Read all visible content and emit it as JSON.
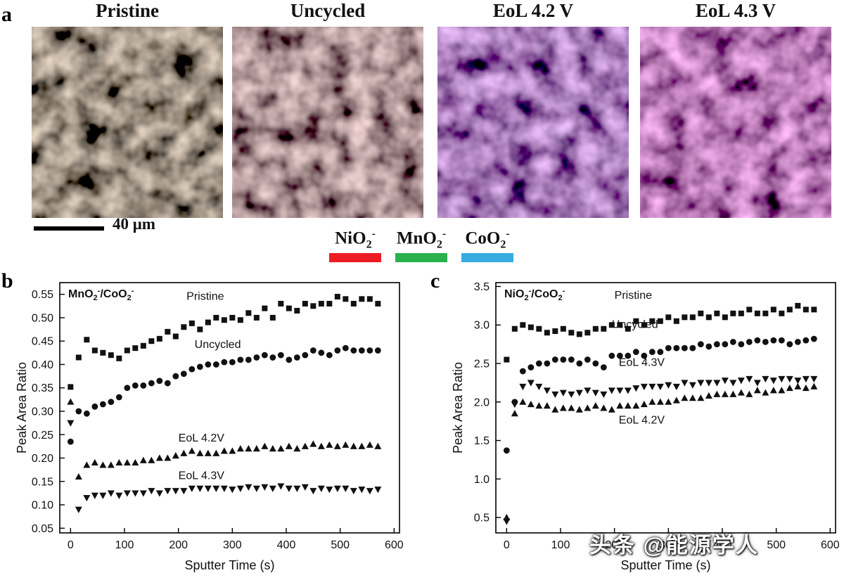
{
  "figure": {
    "panel_a": {
      "label": "a",
      "images": [
        {
          "title": "Pristine"
        },
        {
          "title": "Uncycled"
        },
        {
          "title": "EoL 4.2 V"
        },
        {
          "title": "EoL 4.3 V"
        }
      ],
      "scalebar_label": "40 μm",
      "legend": [
        {
          "base": "NiO",
          "sub": "2",
          "sup": "-",
          "color": "#ed1c24"
        },
        {
          "base": "MnO",
          "sub": "2",
          "sup": "-",
          "color": "#2ab04d"
        },
        {
          "base": "CoO",
          "sub": "2",
          "sup": "-",
          "color": "#38abe0"
        }
      ]
    },
    "panel_b_label": "b",
    "panel_c_label": "c",
    "watermark": "头条 @能源学人"
  },
  "chart_data": [
    {
      "id": "b",
      "type": "scatter",
      "title_segments": [
        {
          "t": "MnO"
        },
        {
          "t": "2",
          "sub": true
        },
        {
          "t": "-",
          "sup": true
        },
        {
          "t": "/CoO"
        },
        {
          "t": "2",
          "sub": true
        },
        {
          "t": "-",
          "sup": true
        }
      ],
      "xlabel": "Sputter Time (s)",
      "ylabel": "Peak Area Ratio",
      "xlim": [
        -20,
        610
      ],
      "ylim": [
        0.04,
        0.575
      ],
      "xticks": [
        0,
        100,
        200,
        300,
        400,
        500,
        600
      ],
      "xtick_labels": [
        "0",
        "100",
        "200",
        "300",
        "400",
        "500",
        "600"
      ],
      "yticks": [
        0.05,
        0.1,
        0.15,
        0.2,
        0.25,
        0.3,
        0.35,
        0.4,
        0.45,
        0.5,
        0.55
      ],
      "ytick_labels": [
        "0.05",
        "0.10",
        "0.15",
        "0.20",
        "0.25",
        "0.30",
        "0.35",
        "0.40",
        "0.45",
        "0.50",
        "0.55"
      ],
      "x": [
        0,
        15,
        30,
        45,
        60,
        75,
        90,
        105,
        120,
        135,
        150,
        165,
        180,
        195,
        210,
        225,
        240,
        255,
        270,
        285,
        300,
        315,
        330,
        345,
        360,
        375,
        390,
        405,
        420,
        435,
        450,
        465,
        480,
        495,
        510,
        525,
        540,
        555,
        570
      ],
      "series": [
        {
          "name": "Pristine",
          "marker": "square",
          "label_x": 215,
          "label_y": 0.538,
          "y": [
            0.352,
            0.415,
            0.453,
            0.43,
            0.425,
            0.42,
            0.413,
            0.43,
            0.435,
            0.44,
            0.45,
            0.455,
            0.47,
            0.46,
            0.48,
            0.488,
            0.475,
            0.49,
            0.5,
            0.495,
            0.5,
            0.495,
            0.51,
            0.5,
            0.52,
            0.5,
            0.53,
            0.52,
            0.515,
            0.53,
            0.525,
            0.53,
            0.53,
            0.545,
            0.54,
            0.53,
            0.54,
            0.54,
            0.53
          ]
        },
        {
          "name": "Uncycled",
          "marker": "circle",
          "label_x": 230,
          "label_y": 0.435,
          "y": [
            0.235,
            0.3,
            0.295,
            0.31,
            0.315,
            0.32,
            0.33,
            0.35,
            0.355,
            0.355,
            0.36,
            0.365,
            0.36,
            0.375,
            0.38,
            0.39,
            0.395,
            0.4,
            0.4,
            0.405,
            0.405,
            0.41,
            0.41,
            0.415,
            0.42,
            0.415,
            0.42,
            0.41,
            0.415,
            0.42,
            0.43,
            0.425,
            0.42,
            0.43,
            0.435,
            0.43,
            0.43,
            0.43,
            0.43
          ]
        },
        {
          "name": "EoL 4.2V",
          "marker": "triangle-up",
          "label_x": 200,
          "label_y": 0.235,
          "y": [
            0.32,
            0.16,
            0.185,
            0.19,
            0.185,
            0.185,
            0.19,
            0.19,
            0.19,
            0.195,
            0.195,
            0.2,
            0.2,
            0.205,
            0.21,
            0.215,
            0.21,
            0.21,
            0.21,
            0.215,
            0.215,
            0.22,
            0.22,
            0.22,
            0.225,
            0.22,
            0.22,
            0.225,
            0.22,
            0.225,
            0.23,
            0.225,
            0.228,
            0.225,
            0.228,
            0.225,
            0.225,
            0.228,
            0.225
          ]
        },
        {
          "name": "EoL 4.3V",
          "marker": "triangle-down",
          "label_x": 200,
          "label_y": 0.155,
          "y": [
            0.275,
            0.09,
            0.115,
            0.12,
            0.12,
            0.125,
            0.12,
            0.125,
            0.125,
            0.125,
            0.13,
            0.125,
            0.13,
            0.13,
            0.13,
            0.135,
            0.135,
            0.135,
            0.135,
            0.135,
            0.133,
            0.135,
            0.138,
            0.135,
            0.138,
            0.135,
            0.14,
            0.135,
            0.135,
            0.138,
            0.13,
            0.135,
            0.133,
            0.135,
            0.135,
            0.13,
            0.133,
            0.13,
            0.133
          ]
        }
      ]
    },
    {
      "id": "c",
      "type": "scatter",
      "title_segments": [
        {
          "t": "NiO"
        },
        {
          "t": "2",
          "sub": true
        },
        {
          "t": "-",
          "sup": true
        },
        {
          "t": "/CoO"
        },
        {
          "t": "2",
          "sub": true
        },
        {
          "t": "-",
          "sup": true
        }
      ],
      "xlabel": "Sputter Time (s)",
      "ylabel": "Peak Area Ratio",
      "xlim": [
        -20,
        610
      ],
      "ylim": [
        0.3,
        3.55
      ],
      "xticks": [
        0,
        100,
        200,
        300,
        400,
        500,
        600
      ],
      "xtick_labels": [
        "0",
        "100",
        "200",
        "300",
        "400",
        "500",
        "600"
      ],
      "yticks": [
        0.5,
        1.0,
        1.5,
        2.0,
        2.5,
        3.0,
        3.5
      ],
      "ytick_labels": [
        "0.5",
        "1.0",
        "1.5",
        "2.0",
        "2.5",
        "3.0",
        "3.5"
      ],
      "x": [
        0,
        15,
        30,
        45,
        60,
        75,
        90,
        105,
        120,
        135,
        150,
        165,
        180,
        195,
        210,
        225,
        240,
        255,
        270,
        285,
        300,
        315,
        330,
        345,
        360,
        375,
        390,
        405,
        420,
        435,
        450,
        465,
        480,
        495,
        510,
        525,
        540,
        555,
        570
      ],
      "series": [
        {
          "name": "Pristine",
          "marker": "square",
          "label_x": 200,
          "label_y": 3.34,
          "y": [
            2.55,
            2.95,
            3.0,
            2.97,
            2.95,
            2.9,
            2.92,
            2.95,
            2.9,
            2.88,
            2.9,
            2.95,
            2.95,
            3.0,
            3.0,
            2.95,
            3.05,
            3.0,
            3.05,
            3.05,
            3.1,
            3.05,
            3.1,
            3.1,
            3.15,
            3.1,
            3.15,
            3.1,
            3.15,
            3.15,
            3.2,
            3.15,
            3.15,
            3.2,
            3.15,
            3.2,
            3.25,
            3.2,
            3.2
          ]
        },
        {
          "name": "Uncycled",
          "marker": "circle",
          "label_x": 195,
          "label_y": 2.96,
          "y": [
            1.37,
            2.0,
            2.4,
            2.45,
            2.5,
            2.5,
            2.55,
            2.55,
            2.55,
            2.5,
            2.55,
            2.5,
            2.45,
            2.6,
            2.6,
            2.6,
            2.65,
            2.6,
            2.65,
            2.65,
            2.7,
            2.7,
            2.7,
            2.7,
            2.75,
            2.72,
            2.75,
            2.75,
            2.78,
            2.75,
            2.78,
            2.8,
            2.78,
            2.8,
            2.8,
            2.75,
            2.78,
            2.8,
            2.82
          ]
        },
        {
          "name": "EoL 4.3V",
          "marker": "triangle-down",
          "label_x": 208,
          "label_y": 2.47,
          "y": [
            0.45,
            1.97,
            2.2,
            2.25,
            2.2,
            2.15,
            2.1,
            2.12,
            2.1,
            2.12,
            2.15,
            2.12,
            2.1,
            2.15,
            2.15,
            2.15,
            2.18,
            2.2,
            2.2,
            2.2,
            2.22,
            2.2,
            2.25,
            2.22,
            2.25,
            2.25,
            2.25,
            2.28,
            2.25,
            2.28,
            2.3,
            2.25,
            2.3,
            2.28,
            2.3,
            2.3,
            2.28,
            2.3,
            2.3
          ]
        },
        {
          "name": "EoL 4.2V",
          "marker": "triangle-up",
          "label_x": 208,
          "label_y": 1.72,
          "y": [
            0.5,
            1.85,
            2.0,
            1.97,
            1.95,
            1.95,
            1.9,
            1.92,
            1.92,
            1.9,
            1.92,
            1.95,
            1.92,
            1.9,
            1.95,
            1.95,
            1.95,
            1.97,
            2.0,
            2.0,
            2.0,
            2.02,
            2.05,
            2.05,
            2.05,
            2.08,
            2.1,
            2.1,
            2.1,
            2.12,
            2.1,
            2.15,
            2.12,
            2.15,
            2.15,
            2.18,
            2.2,
            2.18,
            2.2
          ]
        }
      ]
    }
  ]
}
